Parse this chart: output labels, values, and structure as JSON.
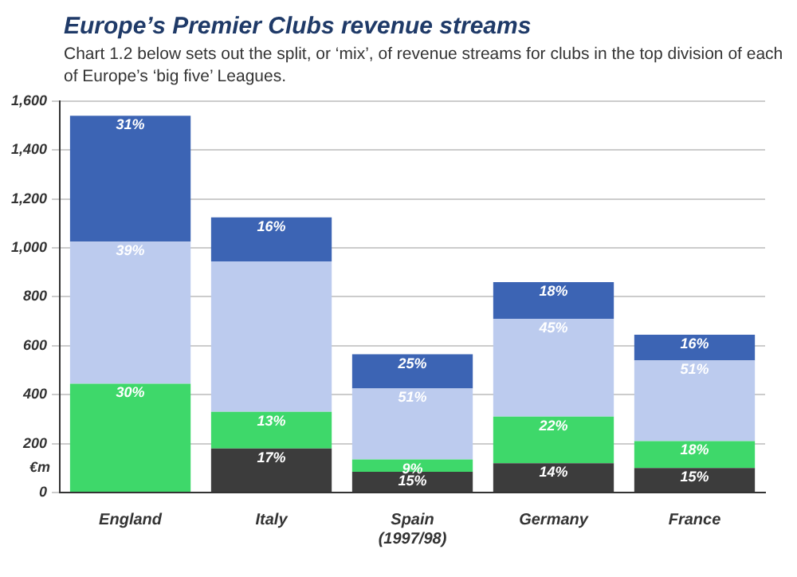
{
  "chart_data": {
    "type": "bar",
    "stacked": true,
    "title": "Europe’s Premier Clubs revenue streams",
    "subtitle": "Chart 1.2 below sets out the split, or ‘mix’, of revenue streams for clubs in the top division of each of Europe’s ‘big five’ Leagues.",
    "ylabel": "€m",
    "categories": [
      "England",
      "Italy",
      "Spain (1997/98)",
      "Germany",
      "France"
    ],
    "series": [
      {
        "color": "#3c3c3c",
        "values": [
          null,
          180,
          85,
          120,
          100
        ]
      },
      {
        "color": "#3ed86a",
        "values": [
          445,
          150,
          50,
          190,
          110
        ]
      },
      {
        "color": "#bccbee",
        "values": [
          580,
          615,
          290,
          400,
          330
        ]
      },
      {
        "color": "#3c64b4",
        "values": [
          515,
          180,
          140,
          150,
          105
        ]
      }
    ],
    "annotations": [
      {
        "text": "30%",
        "x": "England",
        "y": 445
      },
      {
        "text": "39%",
        "x": "England",
        "y": 1025
      },
      {
        "text": "31%",
        "x": "England",
        "y": 1540
      },
      {
        "text": "17%",
        "x": "Italy",
        "y": 180
      },
      {
        "text": "13%",
        "x": "Italy",
        "y": 330
      },
      {
        "text": "16%",
        "x": "Italy",
        "y": 1125
      },
      {
        "text": "15%",
        "x": "Spain (1997/98)",
        "y": 85
      },
      {
        "text": "9%",
        "x": "Spain (1997/98)",
        "y": 135
      },
      {
        "text": "51%",
        "x": "Spain (1997/98)",
        "y": 425
      },
      {
        "text": "25%",
        "x": "Spain (1997/98)",
        "y": 565
      },
      {
        "text": "14%",
        "x": "Germany",
        "y": 120
      },
      {
        "text": "22%",
        "x": "Germany",
        "y": 310
      },
      {
        "text": "45%",
        "x": "Germany",
        "y": 710
      },
      {
        "text": "18%",
        "x": "Germany",
        "y": 860
      },
      {
        "text": "15%",
        "x": "France",
        "y": 100
      },
      {
        "text": "18%",
        "x": "France",
        "y": 210
      },
      {
        "text": "51%",
        "x": "France",
        "y": 540
      },
      {
        "text": "16%",
        "x": "France",
        "y": 645
      }
    ],
    "ylim": [
      0,
      1600
    ],
    "yticks": [
      0,
      {
        "value": 200,
        "label": "200"
      },
      {
        "value": 400,
        "label": "400"
      },
      {
        "value": 600,
        "label": "600"
      },
      {
        "value": 800,
        "label": "800"
      },
      {
        "value": 1000,
        "label": "1,000"
      },
      {
        "value": 1200,
        "label": "1,200"
      },
      {
        "value": 1400,
        "label": "1,400"
      },
      {
        "value": 1600,
        "label": "1,600"
      }
    ],
    "grid": "y",
    "legend": false
  }
}
